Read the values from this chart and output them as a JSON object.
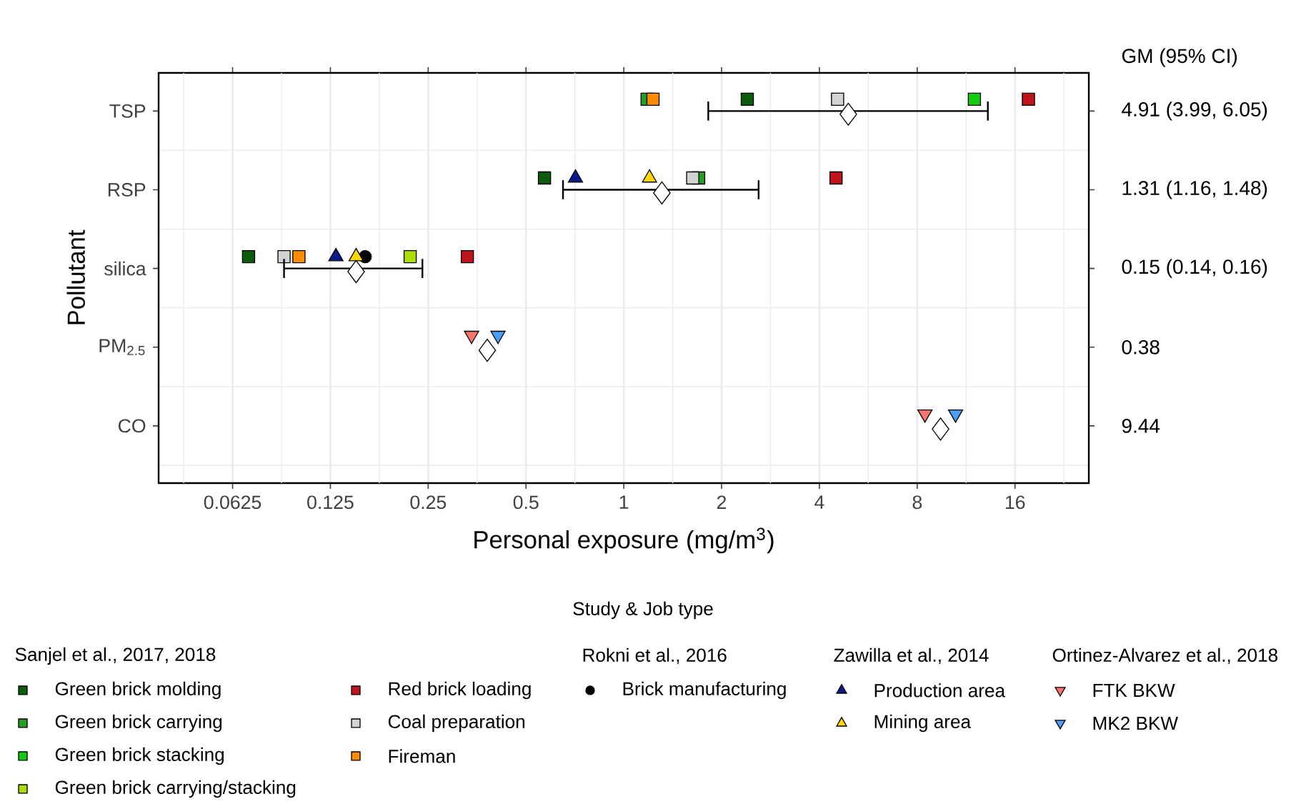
{
  "chart_data": {
    "type": "scatter",
    "orientation": "horizontal",
    "xlabel": "Personal exposure (mg/m$^{3}$)",
    "ylabel": "Pollutant",
    "categories": [
      "TSP",
      "RSP",
      "silica",
      "PM$_{2.5}$",
      "CO"
    ],
    "log": "x",
    "xlim": [
      0.037,
      27
    ],
    "xticks": [
      0.0625,
      0.125,
      0.25,
      0.5,
      1,
      2,
      4,
      8,
      16
    ],
    "grid": true,
    "legend": "bottom",
    "legend_title": "Study & Job type",
    "annotations": [
      "GM (95% CI)",
      "4.91 (3.99, 6.05)",
      "1.31 (1.16, 1.48)",
      "0.15 (0.14, 0.16)",
      "0.38",
      "9.44",
      "Sanjel et al., 2017, 2018",
      "Rokni et al., 2016",
      "Zawilla et al., 2014",
      "Ortinez-Alvarez et al., 2018"
    ],
    "series": [
      {
        "name": "Green brick molding",
        "marker": "square",
        "color": "#0b5d0b",
        "values": [
          2.4,
          0.57,
          0.07,
          null,
          null
        ]
      },
      {
        "name": "Green brick carrying",
        "marker": "square",
        "color": "#22a022",
        "values": [
          1.18,
          1.7,
          null,
          null,
          null
        ]
      },
      {
        "name": "Green brick stacking",
        "marker": "square",
        "color": "#11cc11",
        "values": [
          12,
          null,
          null,
          null,
          null
        ]
      },
      {
        "name": "Green brick carrying/stacking",
        "marker": "square",
        "color": "#aadd00",
        "values": [
          null,
          null,
          0.22,
          null,
          null
        ]
      },
      {
        "name": "Red brick loading",
        "marker": "square",
        "color": "#c0141c",
        "values": [
          17.6,
          4.5,
          0.33,
          null,
          null
        ]
      },
      {
        "name": "Coal preparation",
        "marker": "square",
        "color": "#d3d3d3",
        "values": [
          4.55,
          1.63,
          0.09,
          null,
          null
        ]
      },
      {
        "name": "Fireman",
        "marker": "square",
        "color": "#ff8c00",
        "values": [
          1.23,
          null,
          0.1,
          null,
          null
        ]
      },
      {
        "name": "Brick manufacturing",
        "marker": "circle",
        "color": "#000000",
        "values": [
          null,
          null,
          0.16,
          null,
          null
        ]
      },
      {
        "name": "Production area",
        "marker": "triangle",
        "color": "#0a1a8c",
        "values": [
          null,
          0.71,
          0.13,
          null,
          null
        ]
      },
      {
        "name": "Mining area",
        "marker": "triangle",
        "color": "#ffd700",
        "values": [
          null,
          1.2,
          0.15,
          null,
          null
        ]
      },
      {
        "name": "FTK BKW",
        "marker": "triangle-down",
        "color": "#f8766d",
        "values": [
          null,
          null,
          null,
          0.34,
          8.45
        ]
      },
      {
        "name": "MK2 BKW",
        "marker": "triangle-down",
        "color": "#4a9ff5",
        "values": [
          null,
          null,
          null,
          0.41,
          10.5
        ]
      },
      {
        "marker": "diamond",
        "color": "#ffffff",
        "values": [
          4.91,
          1.31,
          0.15,
          0.38,
          9.44
        ],
        "errors": [
          [
            1.82,
            13.2
          ],
          [
            0.65,
            2.6
          ],
          [
            0.09,
            0.24
          ],
          null,
          null
        ]
      }
    ]
  }
}
